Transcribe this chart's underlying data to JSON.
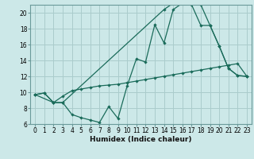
{
  "xlabel": "Humidex (Indice chaleur)",
  "bg_color": "#cce8e8",
  "grid_color": "#aacccc",
  "line_color": "#1a6b5a",
  "spine_color": "#6a9a9a",
  "xlim": [
    -0.5,
    23.5
  ],
  "ylim": [
    6,
    21
  ],
  "xticks": [
    0,
    1,
    2,
    3,
    4,
    5,
    6,
    7,
    8,
    9,
    10,
    11,
    12,
    13,
    14,
    15,
    16,
    17,
    18,
    19,
    20,
    21,
    22,
    23
  ],
  "yticks": [
    6,
    8,
    10,
    12,
    14,
    16,
    18,
    20
  ],
  "line1_x": [
    0,
    1,
    2,
    3,
    4,
    5,
    6,
    7,
    8,
    9,
    10,
    11,
    12,
    13,
    14,
    15,
    16,
    17,
    18,
    19,
    20,
    21,
    22,
    23
  ],
  "line1_y": [
    9.7,
    9.9,
    8.7,
    8.7,
    7.2,
    6.8,
    6.5,
    6.2,
    8.2,
    6.7,
    10.8,
    14.2,
    13.8,
    18.5,
    16.2,
    20.4,
    21.2,
    21.2,
    21.0,
    18.4,
    15.8,
    13.0,
    12.1,
    12.0
  ],
  "line2_x": [
    0,
    1,
    2,
    3,
    4,
    5,
    6,
    7,
    8,
    9,
    10,
    11,
    12,
    13,
    14,
    15,
    16,
    17,
    18,
    19,
    20,
    21,
    22,
    23
  ],
  "line2_y": [
    9.7,
    9.9,
    8.7,
    9.5,
    10.2,
    10.4,
    10.6,
    10.8,
    10.9,
    11.0,
    11.2,
    11.4,
    11.6,
    11.8,
    12.0,
    12.2,
    12.4,
    12.6,
    12.8,
    13.0,
    13.2,
    13.4,
    13.6,
    12.0
  ],
  "line3_x": [
    0,
    2,
    3,
    14,
    15,
    16,
    17,
    18,
    19,
    20,
    21,
    22,
    23
  ],
  "line3_y": [
    9.7,
    8.7,
    8.7,
    20.4,
    21.2,
    21.2,
    21.0,
    18.4,
    18.4,
    15.8,
    13.0,
    12.1,
    12.0
  ],
  "tick_fontsize": 5.5,
  "xlabel_fontsize": 6.5
}
